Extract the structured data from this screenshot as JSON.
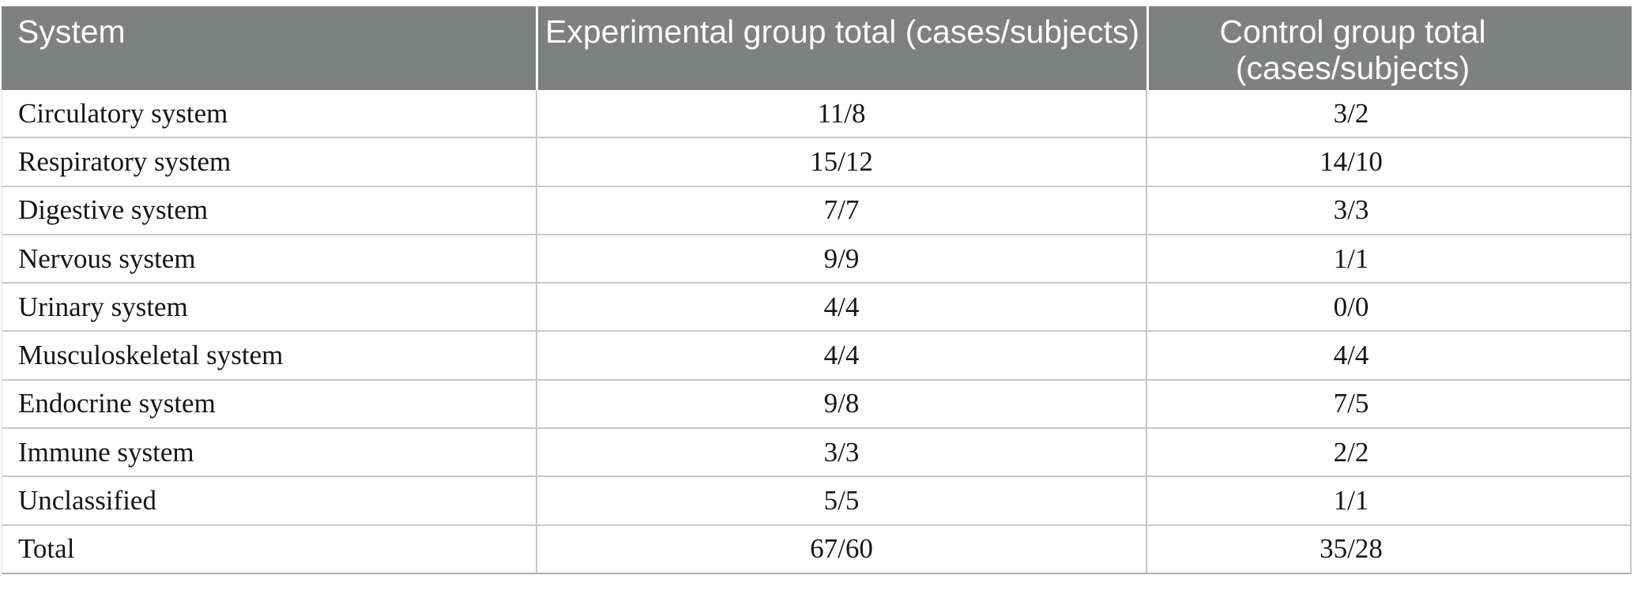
{
  "table": {
    "columns": [
      {
        "label": "System"
      },
      {
        "label": "Experimental group total (cases/subjects)"
      },
      {
        "label": "Control group total (cases/subjects)"
      }
    ],
    "rows": [
      {
        "system": "Circulatory system",
        "experimental": "11/8",
        "control": "3/2"
      },
      {
        "system": "Respiratory system",
        "experimental": "15/12",
        "control": "14/10"
      },
      {
        "system": "Digestive system",
        "experimental": "7/7",
        "control": "3/3"
      },
      {
        "system": "Nervous system",
        "experimental": "9/9",
        "control": "1/1"
      },
      {
        "system": "Urinary system",
        "experimental": "4/4",
        "control": "0/0"
      },
      {
        "system": "Musculoskeletal system",
        "experimental": "4/4",
        "control": "4/4"
      },
      {
        "system": "Endocrine system",
        "experimental": "9/8",
        "control": "7/5"
      },
      {
        "system": "Immune system",
        "experimental": "3/3",
        "control": "2/2"
      },
      {
        "system": "Unclassified",
        "experimental": "5/5",
        "control": "1/1"
      }
    ],
    "total_row": {
      "system": "Total",
      "experimental": "67/60",
      "control": "35/28"
    },
    "colors": {
      "header_background": "#7f8080",
      "header_text": "#fcfcfc",
      "body_text": "#161616",
      "row_border": "#c9c9c9",
      "column_divider": "#c5c5c5",
      "bottom_border": "#b0b0b0"
    }
  }
}
